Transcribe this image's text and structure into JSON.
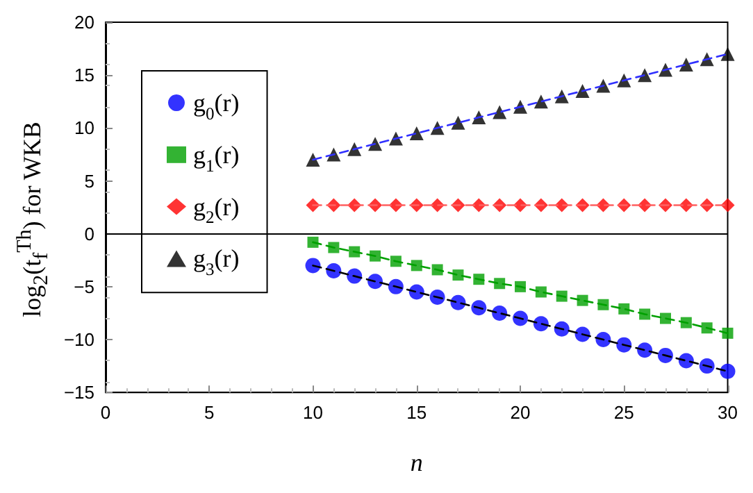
{
  "chart_data": {
    "type": "scatter",
    "ylabel": "log$_{2}$(t$_{f}$$^{Th}$) for WKB",
    "xlabel": "n",
    "x": [
      10,
      11,
      12,
      13,
      14,
      15,
      16,
      17,
      18,
      19,
      20,
      21,
      22,
      23,
      24,
      25,
      26,
      27,
      28,
      29,
      30
    ],
    "xlim": [
      0,
      30
    ],
    "xticks": [
      0,
      5,
      10,
      15,
      20,
      25,
      30
    ],
    "ylim": [
      -15,
      20
    ],
    "yticks": [
      -15,
      -10,
      -5,
      0,
      5,
      10,
      15,
      20
    ],
    "grid": false,
    "legend": "left",
    "ref_lines": [
      {
        "axis": "y",
        "value": 0,
        "color": "#000000",
        "line_style": "solid"
      }
    ],
    "series": [
      {
        "name": "g$_{0}$(r)",
        "color": "#0000ff",
        "marker": "circle",
        "values": [
          -3.0,
          -3.5,
          -4.0,
          -4.5,
          -5.0,
          -5.5,
          -6.0,
          -6.5,
          -7.0,
          -7.5,
          -8.0,
          -8.5,
          -9.0,
          -9.5,
          -10.0,
          -10.5,
          -11.0,
          -11.5,
          -12.0,
          -12.5,
          -13.0
        ]
      },
      {
        "name": "g$_{1}$(r)",
        "color": "#00a000",
        "marker": "square",
        "values": [
          -0.8,
          -1.3,
          -1.7,
          -2.1,
          -2.6,
          -3.0,
          -3.4,
          -3.9,
          -4.3,
          -4.7,
          -5.0,
          -5.5,
          -5.9,
          -6.3,
          -6.7,
          -7.1,
          -7.6,
          -8.0,
          -8.4,
          -8.9,
          -9.4
        ]
      },
      {
        "name": "g$_{2}$(r)",
        "color": "#ff0000",
        "marker": "diamond",
        "values": [
          2.7,
          2.7,
          2.7,
          2.7,
          2.7,
          2.7,
          2.7,
          2.7,
          2.7,
          2.7,
          2.7,
          2.7,
          2.7,
          2.7,
          2.7,
          2.7,
          2.7,
          2.7,
          2.7,
          2.7,
          2.7
        ]
      },
      {
        "name": "g$_{3}$(r)",
        "color": "#000000",
        "marker": "triangle",
        "values": [
          7.0,
          7.5,
          8.0,
          8.5,
          9.0,
          9.5,
          10.0,
          10.5,
          11.0,
          11.5,
          12.0,
          12.5,
          13.0,
          13.5,
          14.0,
          14.5,
          15.0,
          15.5,
          16.0,
          16.5,
          17.0
        ]
      },
      {
        "type": "line",
        "color": "#000000",
        "marker": "none",
        "line_style": "dashed",
        "values": [
          -3.0,
          -3.5,
          -4.0,
          -4.5,
          -5.0,
          -5.5,
          -6.0,
          -6.5,
          -7.0,
          -7.5,
          -8.0,
          -8.5,
          -9.0,
          -9.5,
          -10.0,
          -10.5,
          -11.0,
          -11.5,
          -12.0,
          -12.5,
          -13.0
        ]
      },
      {
        "type": "line",
        "color": "#00a000",
        "marker": "none",
        "line_style": "dashed",
        "values": [
          -0.8,
          -1.3,
          -1.7,
          -2.1,
          -2.6,
          -3.0,
          -3.4,
          -3.9,
          -4.3,
          -4.7,
          -5.0,
          -5.5,
          -5.9,
          -6.3,
          -6.7,
          -7.1,
          -7.6,
          -8.0,
          -8.4,
          -8.9,
          -9.4
        ]
      },
      {
        "type": "line",
        "color": "#ff6060",
        "marker": "none",
        "line_style": "dashed",
        "values": [
          2.7,
          2.7,
          2.7,
          2.7,
          2.7,
          2.7,
          2.7,
          2.7,
          2.7,
          2.7,
          2.7,
          2.7,
          2.7,
          2.7,
          2.7,
          2.7,
          2.7,
          2.7,
          2.7,
          2.7,
          2.7
        ]
      },
      {
        "type": "line",
        "color": "#3030ff",
        "marker": "none",
        "line_style": "dashed",
        "values": [
          7.0,
          7.5,
          8.0,
          8.5,
          9.0,
          9.5,
          10.0,
          10.5,
          11.0,
          11.5,
          12.0,
          12.5,
          13.0,
          13.5,
          14.0,
          14.5,
          15.0,
          15.5,
          16.0,
          16.5,
          17.0
        ]
      }
    ]
  }
}
